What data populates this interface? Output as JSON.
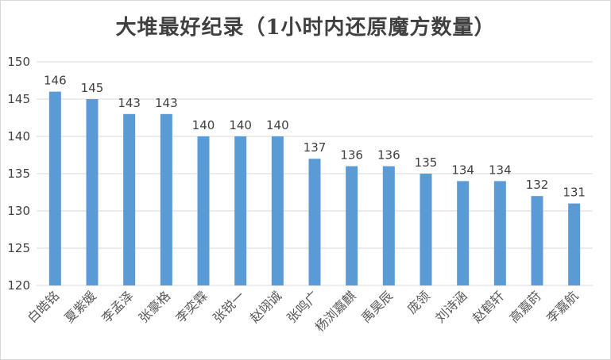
{
  "chart_data": {
    "type": "bar",
    "title": "大堆最好纪录（1小时内还原魔方数量）",
    "categories": [
      "白皓铭",
      "夏紫媛",
      "李孟泽",
      "张豪格",
      "李奕霖",
      "张锐一",
      "赵翊诚",
      "张鸣广",
      "杨浏嘉麒",
      "禹昊辰",
      "庞领",
      "刘诗涵",
      "赵鹤轩",
      "高嘉莳",
      "李嘉航"
    ],
    "values": [
      146,
      145,
      143,
      143,
      140,
      140,
      140,
      137,
      136,
      136,
      135,
      134,
      134,
      132,
      131
    ],
    "ylim": [
      120,
      150
    ],
    "yticks": [
      120,
      125,
      130,
      135,
      140,
      145,
      150
    ],
    "grid": true,
    "legend": "none",
    "bar_color": "#5b9bd5",
    "grid_color": "#d9d9d9",
    "text_color": "#404040"
  }
}
